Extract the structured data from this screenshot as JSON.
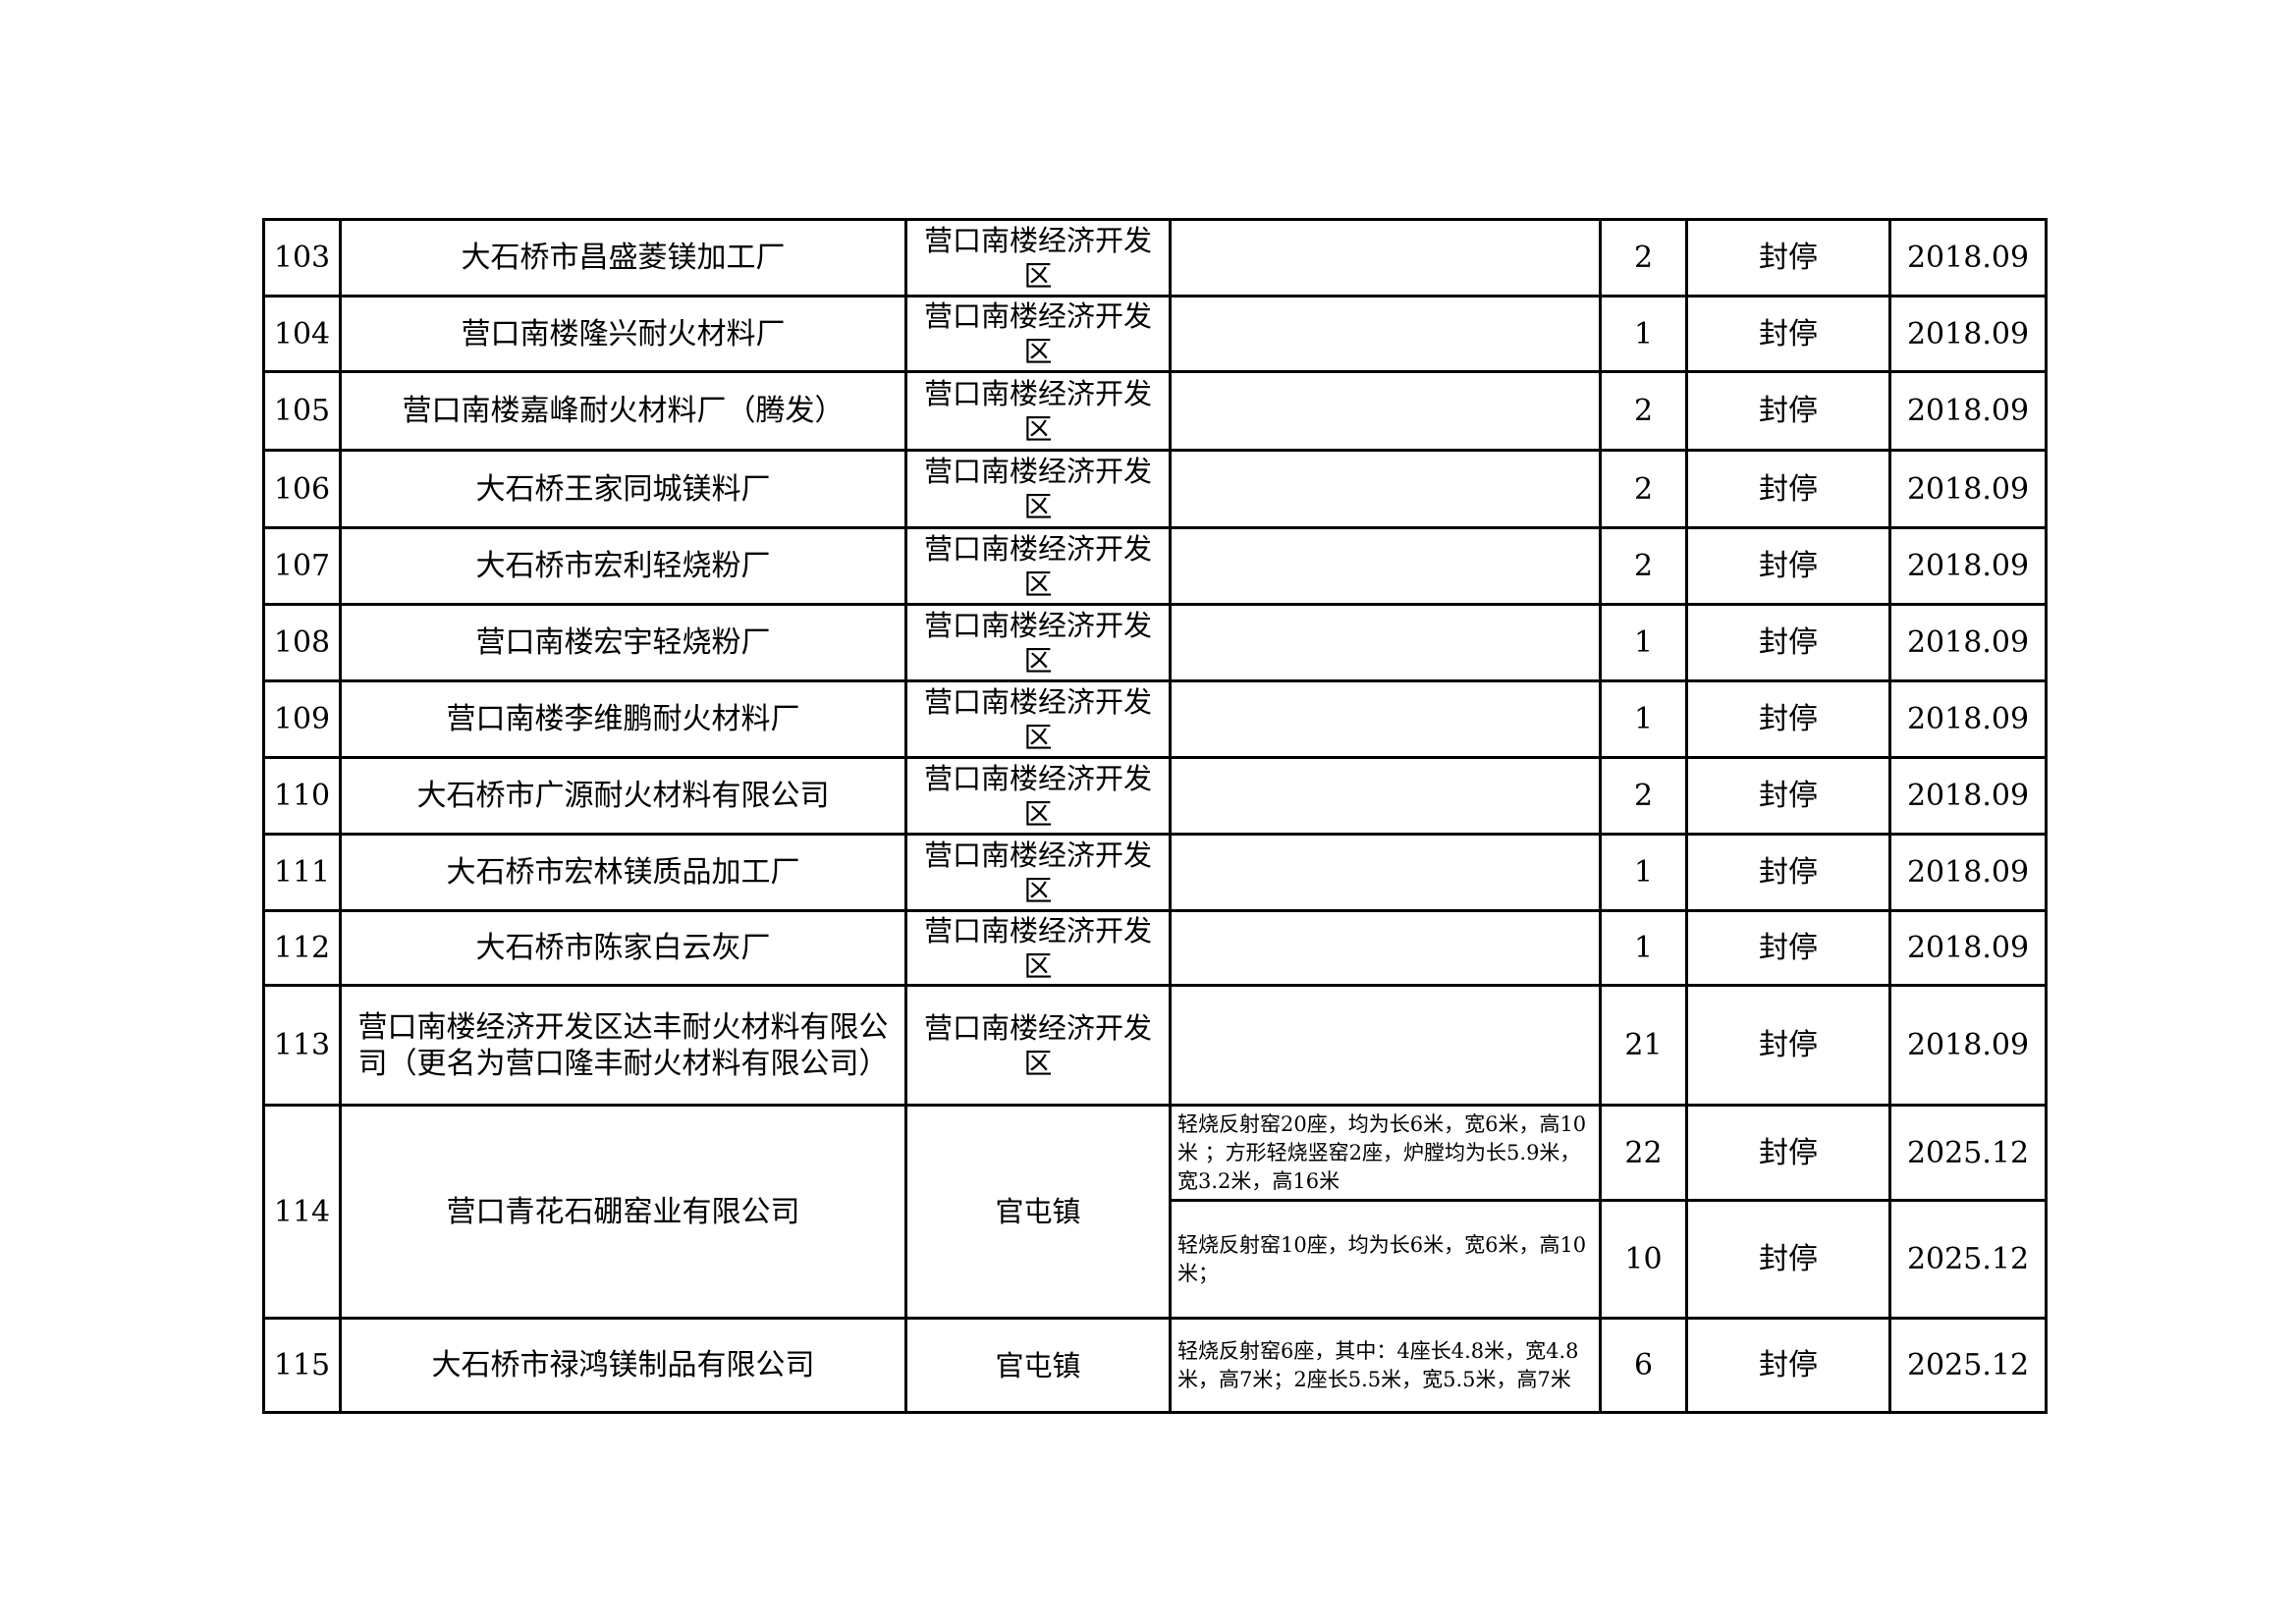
{
  "rows": [
    {
      "no": "103",
      "name": "大石桥市昌盛菱镁加工厂",
      "zone": "营口南楼经济开发区",
      "kilns": [
        {
          "desc": "",
          "count": "2",
          "status": "封停",
          "date": "2018.09"
        }
      ]
    },
    {
      "no": "104",
      "name": "营口南楼隆兴耐火材料厂",
      "zone": "营口南楼经济开发区",
      "kilns": [
        {
          "desc": "",
          "count": "1",
          "status": "封停",
          "date": "2018.09"
        }
      ]
    },
    {
      "no": "105",
      "name": "营口南楼嘉峰耐火材料厂（腾发）",
      "zone": "营口南楼经济开发区",
      "kilns": [
        {
          "desc": "",
          "count": "2",
          "status": "封停",
          "date": "2018.09"
        }
      ]
    },
    {
      "no": "106",
      "name": "大石桥王家同城镁料厂",
      "zone": "营口南楼经济开发区",
      "kilns": [
        {
          "desc": "",
          "count": "2",
          "status": "封停",
          "date": "2018.09"
        }
      ]
    },
    {
      "no": "107",
      "name": "大石桥市宏利轻烧粉厂",
      "zone": "营口南楼经济开发区",
      "kilns": [
        {
          "desc": "",
          "count": "2",
          "status": "封停",
          "date": "2018.09"
        }
      ]
    },
    {
      "no": "108",
      "name": "营口南楼宏宇轻烧粉厂",
      "zone": "营口南楼经济开发区",
      "kilns": [
        {
          "desc": "",
          "count": "1",
          "status": "封停",
          "date": "2018.09"
        }
      ]
    },
    {
      "no": "109",
      "name": "营口南楼李维鹏耐火材料厂",
      "zone": "营口南楼经济开发区",
      "kilns": [
        {
          "desc": "",
          "count": "1",
          "status": "封停",
          "date": "2018.09"
        }
      ]
    },
    {
      "no": "110",
      "name": "大石桥市广源耐火材料有限公司",
      "zone": "营口南楼经济开发区",
      "kilns": [
        {
          "desc": "",
          "count": "2",
          "status": "封停",
          "date": "2018.09"
        }
      ]
    },
    {
      "no": "111",
      "name": "大石桥市宏林镁质品加工厂",
      "zone": "营口南楼经济开发区",
      "kilns": [
        {
          "desc": "",
          "count": "1",
          "status": "封停",
          "date": "2018.09"
        }
      ]
    },
    {
      "no": "112",
      "name": "大石桥市陈家白云灰厂",
      "zone": "营口南楼经济开发区",
      "kilns": [
        {
          "desc": "",
          "count": "1",
          "status": "封停",
          "date": "2018.09"
        }
      ]
    },
    {
      "no": "113",
      "name": "营口南楼经济开发区达丰耐火材料有限公司（更名为营口隆丰耐火材料有限公司）",
      "zone": "营口南楼经济开发区",
      "kilns": [
        {
          "desc": "",
          "count": "21",
          "status": "封停",
          "date": "2018.09"
        }
      ]
    },
    {
      "no": "114",
      "name": "营口青花石硼窑业有限公司",
      "zone": "官屯镇",
      "kilns": [
        {
          "desc": "轻烧反射窑20座，均为长6米，宽6米，高10米 ；方形轻烧竖窑2座，炉膛均为长5.9米，宽3.2米，高16米",
          "count": "22",
          "status": "封停",
          "date": "2025.12"
        },
        {
          "desc": "轻烧反射窑10座，均为长6米，宽6米，高10米；",
          "count": "10",
          "status": "封停",
          "date": "2025.12"
        }
      ]
    },
    {
      "no": "115",
      "name": "大石桥市禄鸿镁制品有限公司",
      "zone": "官屯镇",
      "kilns": [
        {
          "desc": "轻烧反射窑6座，其中：4座长4.8米，宽4.8米，高7米；2座长5.5米，宽5.5米，高7米",
          "count": "6",
          "status": "封停",
          "date": "2025.12"
        }
      ]
    }
  ]
}
